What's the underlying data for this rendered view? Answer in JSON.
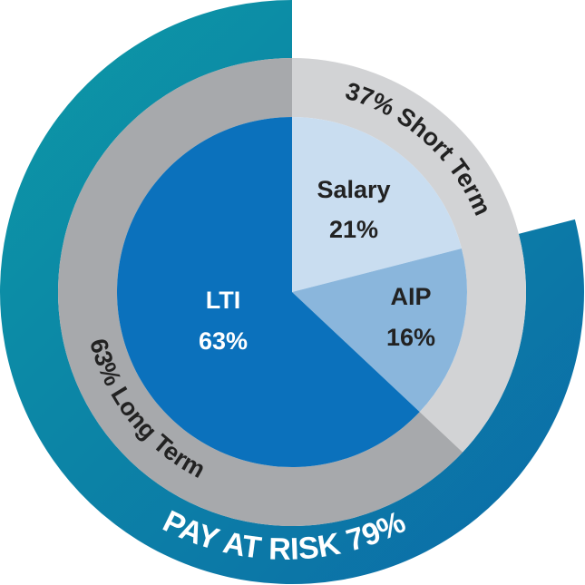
{
  "chart_data": {
    "type": "pie",
    "variant": "nested-donut",
    "inner": [
      {
        "label": "Salary",
        "value_label": "21%",
        "value": 21,
        "color": "#c9ddf0",
        "text_color": "#222222"
      },
      {
        "label": "AIP",
        "value_label": "16%",
        "value": 16,
        "color": "#8ab6dc",
        "text_color": "#222222"
      },
      {
        "label": "LTI",
        "value_label": "63%",
        "value": 63,
        "color": "#0b71bc",
        "text_color": "#ffffff"
      }
    ],
    "middle": [
      {
        "label": "37% Short Term",
        "value": 37,
        "color": "#d2d3d5"
      },
      {
        "label": "63% Long Term",
        "value": 63,
        "color": "#a7a9ac"
      }
    ],
    "outer": {
      "label": "PAY AT RISK 79%",
      "value": 79,
      "color_start": "#0d99a5",
      "color_end": "#0b6aa8"
    }
  }
}
